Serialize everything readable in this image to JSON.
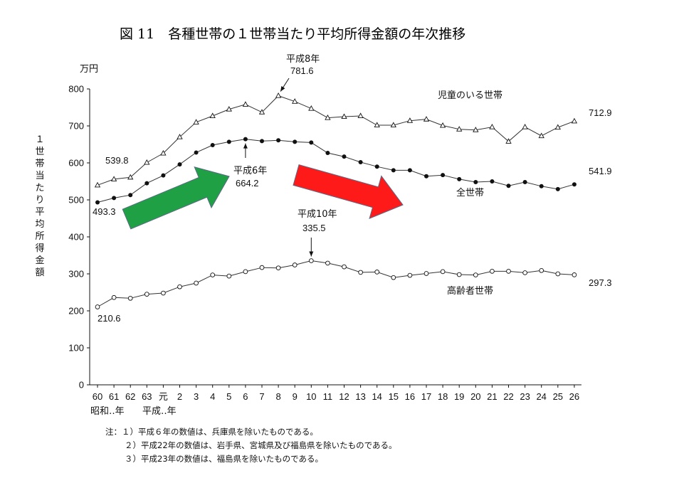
{
  "chart_data": {
    "type": "line",
    "title": "図 11　各種世帯の１世帯当たり平均所得金額の年次推移",
    "y_unit": "万円",
    "ylabel": "１世帯当たり平均所得金額",
    "ylim": [
      0,
      800
    ],
    "y_ticks": [
      "0",
      "100",
      "200",
      "300",
      "400",
      "500",
      "600",
      "700",
      "800"
    ],
    "x_ticks": [
      "60",
      "61",
      "62",
      "63",
      "元",
      "2",
      "3",
      "4",
      "5",
      "6",
      "7",
      "8",
      "9",
      "10",
      "11",
      "12",
      "13",
      "14",
      "15",
      "16",
      "17",
      "18",
      "19",
      "20",
      "21",
      "22",
      "23",
      "24",
      "25",
      "26"
    ],
    "era_labels": [
      "昭和‥年",
      "平成‥年"
    ],
    "grid": false,
    "series": [
      {
        "name": "児童のいる世帯",
        "marker": "triangle-open",
        "values": [
          539.8,
          556,
          561,
          601,
          626,
          670,
          710,
          727,
          745,
          758,
          737,
          781.6,
          766,
          747,
          722,
          725,
          727,
          702,
          702,
          714,
          718,
          701,
          691,
          689,
          697,
          658,
          697,
          673,
          696,
          712.9
        ]
      },
      {
        "name": "全世帯",
        "marker": "circle-filled",
        "values": [
          493.3,
          505,
          513,
          545,
          566,
          596,
          628,
          648,
          657,
          664.2,
          659,
          661,
          657,
          655,
          627,
          617,
          602,
          590,
          580,
          580,
          564,
          567,
          556,
          548,
          550,
          538,
          548,
          537,
          529,
          541.9
        ]
      },
      {
        "name": "高齢者世帯",
        "marker": "circle-open",
        "values": [
          210.6,
          236,
          234,
          245,
          248,
          265,
          275,
          297,
          294,
          306,
          317,
          316,
          324,
          335.5,
          329,
          319,
          304,
          305,
          290,
          296,
          301,
          306,
          298,
          297,
          307,
          307,
          303,
          309,
          300,
          297.3
        ]
      }
    ],
    "annotations": {
      "child_start": "539.8",
      "child_peak_era": "平成8年",
      "child_peak": "781.6",
      "child_end": "712.9",
      "all_start": "493.3",
      "all_peak_era": "平成6年",
      "all_peak": "664.2",
      "all_end": "541.9",
      "elderly_start": "210.6",
      "elderly_peak_era": "平成10年",
      "elderly_peak": "335.5",
      "elderly_end": "297.3"
    },
    "trend_arrows": [
      {
        "direction": "up",
        "color": "#1fa044"
      },
      {
        "direction": "down",
        "color": "#ff1a1a"
      }
    ],
    "notes": [
      "注：１）平成６年の数値は、兵庫県を除いたものである。",
      "２）平成22年の数値は、岩手県、宮城県及び福島県を除いたものである。",
      "３）平成23年の数値は、福島県を除いたものである。"
    ]
  }
}
